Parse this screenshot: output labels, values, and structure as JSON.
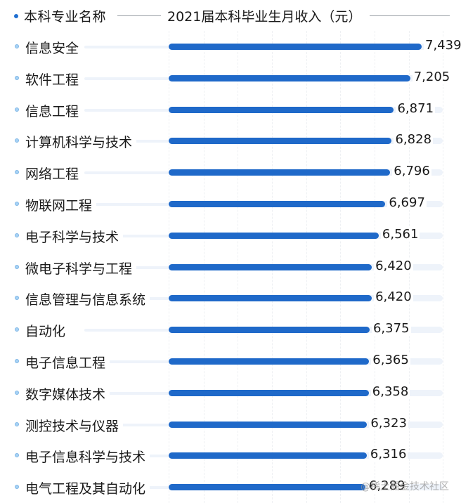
{
  "header": {
    "left_title": "本科专业名称",
    "right_title": "2021届本科毕业生月收入（元）"
  },
  "watermark": "@稀土掘金技术社区",
  "colors": {
    "bar": "#1f69c9",
    "track": "#eef3fa",
    "bullet": "#a8d3f5",
    "header_dot": "#1f6fd1"
  },
  "chart_data": {
    "type": "bar",
    "orientation": "horizontal",
    "title": "2021届本科毕业生月收入（元）",
    "xlabel": "2021届本科毕业生月收入（元）",
    "ylabel": "本科专业名称",
    "grid": true,
    "legend": "none",
    "categories": [
      "信息安全",
      "软件工程",
      "信息工程",
      "计算机科学与技术",
      "网络工程",
      "物联网工程",
      "电子科学与技术",
      "微电子科学与工程",
      "信息管理与信息系统",
      "自动化",
      "电子信息工程",
      "数字媒体技术",
      "测控技术与仪器",
      "电子信息科学与技术",
      "电气工程及其自动化"
    ],
    "values": [
      7439,
      7205,
      6871,
      6828,
      6796,
      6697,
      6561,
      6420,
      6420,
      6375,
      6365,
      6358,
      6323,
      6316,
      6289
    ],
    "value_labels": [
      "7,439",
      "7,205",
      "6,871",
      "6,828",
      "6,796",
      "6,697",
      "6,561",
      "6,420",
      "6,420",
      "6,375",
      "6,365",
      "6,358",
      "6,323",
      "6,316",
      "6,289"
    ]
  },
  "rows": [
    {
      "label": "信息安全",
      "value": "7,439"
    },
    {
      "label": "软件工程",
      "value": "7,205"
    },
    {
      "label": "信息工程",
      "value": "6,871"
    },
    {
      "label": "计算机科学与技术",
      "value": "6,828"
    },
    {
      "label": "网络工程",
      "value": "6,796"
    },
    {
      "label": "物联网工程",
      "value": "6,697"
    },
    {
      "label": "电子科学与技术",
      "value": "6,561"
    },
    {
      "label": "微电子科学与工程",
      "value": "6,420"
    },
    {
      "label": "信息管理与信息系统",
      "value": "6,420"
    },
    {
      "label": "自动化",
      "value": "6,375"
    },
    {
      "label": "电子信息工程",
      "value": "6,365"
    },
    {
      "label": "数字媒体技术",
      "value": "6,358"
    },
    {
      "label": "测控技术与仪器",
      "value": "6,323"
    },
    {
      "label": "电子信息科学与技术",
      "value": "6,316"
    },
    {
      "label": "电气工程及其自动化",
      "value": "6,289"
    }
  ]
}
